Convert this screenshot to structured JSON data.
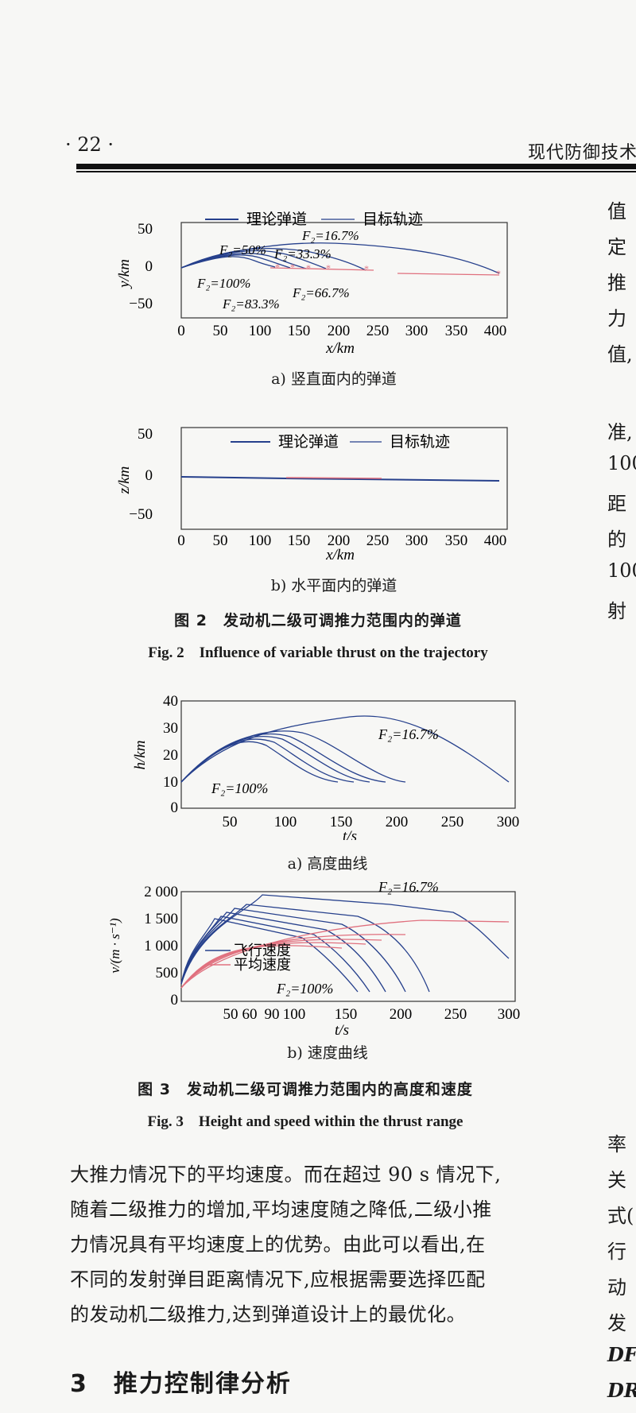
{
  "header": {
    "page_number": "· 22 ·",
    "journal": "现代防御技术"
  },
  "figure2": {
    "panel_a": {
      "legend_theory": "理论弹道",
      "legend_target": "目标轨迹",
      "ylabel": "y/km",
      "xlabel": "x/km",
      "xticks": [
        "0",
        "50",
        "100",
        "150",
        "200",
        "250",
        "300",
        "350",
        "400"
      ],
      "yticks": [
        "50",
        "0",
        "−50"
      ],
      "annotations": [
        "F₂=16.7%",
        "F₂=50%",
        "F₂=33.3%",
        "F₂=100%",
        "F₂=66.7%",
        "F₂=83.3%"
      ],
      "caption": "a) 竖直面内的弹道"
    },
    "panel_b": {
      "legend_theory": "理论弹道",
      "legend_target": "目标轨迹",
      "ylabel": "z/km",
      "xlabel": "x/km",
      "xticks": [
        "0",
        "50",
        "100",
        "150",
        "200",
        "250",
        "300",
        "350",
        "400"
      ],
      "yticks": [
        "50",
        "0",
        "−50"
      ],
      "caption": "b) 水平面内的弹道"
    },
    "caption_zh": "图 2　发动机二级可调推力范围内的弹道",
    "caption_en": "Fig. 2　Influence of variable thrust on the trajectory"
  },
  "figure3": {
    "panel_a": {
      "ylabel": "h/km",
      "xlabel": "t/s",
      "xticks": [
        "50",
        "100",
        "150",
        "200",
        "250",
        "300"
      ],
      "yticks": [
        "40",
        "30",
        "20",
        "10",
        "0"
      ],
      "annotations": [
        "F₂=16.7%",
        "F₂=100%"
      ],
      "caption": "a) 高度曲线"
    },
    "panel_b": {
      "ylabel": "v/(m · s⁻¹)",
      "xlabel": "t/s",
      "xticks": [
        "50",
        "60",
        "90",
        "100",
        "150",
        "200",
        "250",
        "300"
      ],
      "yticks": [
        "2 000",
        "1 500",
        "1 000",
        "500",
        "0"
      ],
      "legend_flight": "飞行速度",
      "legend_average": "平均速度",
      "annotations": [
        "F₂=16.7%",
        "F₂=100%"
      ],
      "caption": "b) 速度曲线"
    },
    "caption_zh": "图 3　发动机二级可调推力范围内的高度和速度",
    "caption_en": "Fig. 3　Height and speed within the thrust range"
  },
  "body_text": [
    "大推力情况下的平均速度。而在超过 90 s 情况下,",
    "随着二级推力的增加,平均速度随之降低,二级小推",
    "力情况具有平均速度上的优势。由此可以看出,在",
    "不同的发射弹目距离情况下,应根据需要选择匹配",
    "的发动机二级推力,达到弹道设计上的最优化。"
  ],
  "section_heading": "3　推力控制律分析",
  "right_column_top": [
    "值",
    "定",
    "推",
    "力",
    "值,",
    "",
    "准,",
    "100",
    "距",
    "的",
    "100",
    "射"
  ],
  "right_column_bottom": [
    "率",
    "关",
    "式(",
    "行",
    "动",
    "发",
    "DF",
    "DR"
  ],
  "colors": {
    "theory": "#26408c",
    "target": "#e0707e",
    "text": "#1b1b1b"
  }
}
